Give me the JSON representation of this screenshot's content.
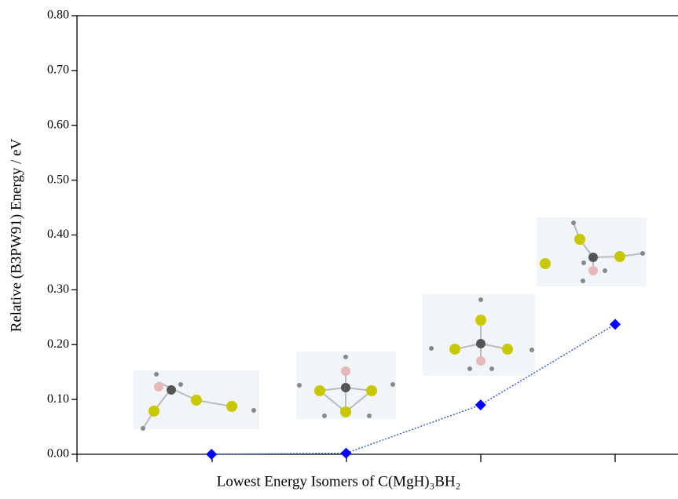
{
  "chart_data": {
    "type": "line",
    "x_label": "Lowest Energy Isomers of  C(MgH)₃BH₂",
    "y_label": "Relative (B3PW91) Energy / eV",
    "categories": [
      null,
      null,
      null,
      null
    ],
    "values": [
      0.0,
      0.002,
      0.09,
      0.237
    ],
    "color": "#0000ff",
    "line_color": "#3a5fcd",
    "ylim": [
      0,
      0.8
    ],
    "yticks": [
      {
        "value": 0,
        "label": "0.00"
      },
      {
        "value": 0.1,
        "label": "0.10"
      },
      {
        "value": 0.2,
        "label": "0.20"
      },
      {
        "value": 0.3,
        "label": "0.30"
      },
      {
        "value": 0.4,
        "label": "0.40"
      },
      {
        "value": 0.5,
        "label": "0.50"
      },
      {
        "value": 0.6,
        "label": "0.60"
      },
      {
        "value": 0.7,
        "label": "0.70"
      },
      {
        "value": 0.8,
        "label": "0.80"
      }
    ],
    "grid": false
  }
}
